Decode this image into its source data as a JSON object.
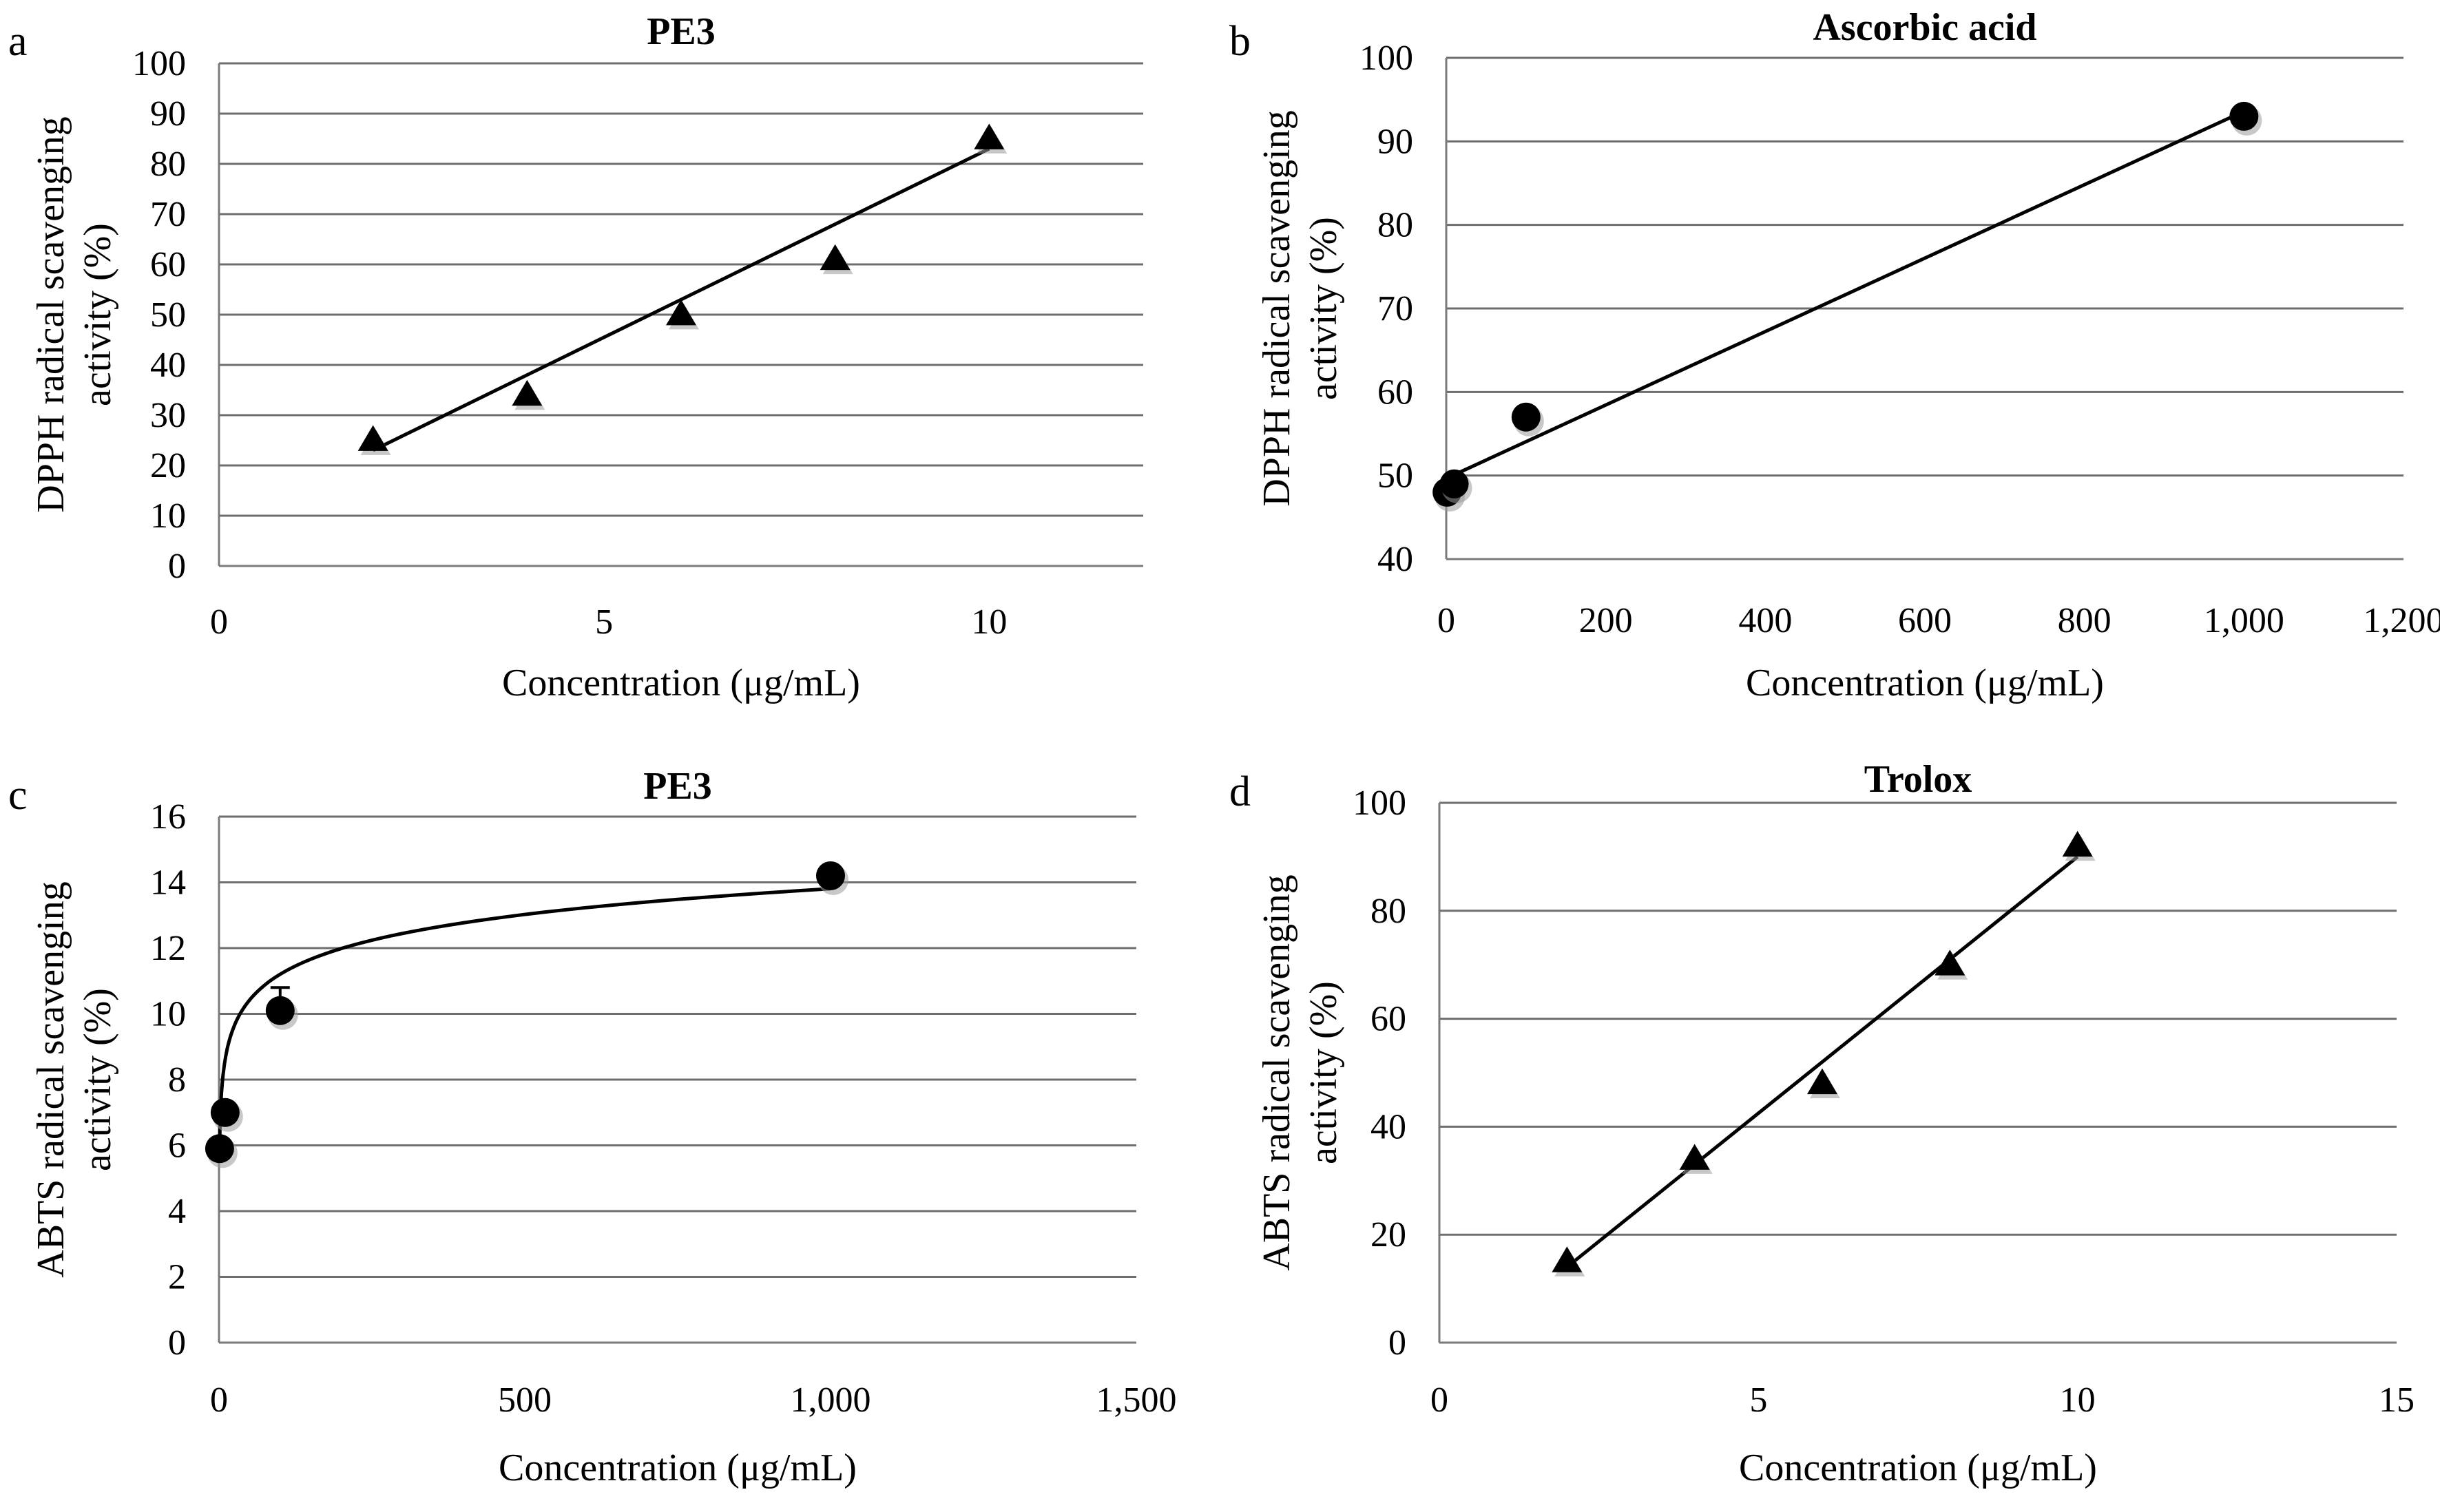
{
  "chart_data": [
    {
      "panel": "a",
      "type": "scatter",
      "title": "PE3",
      "xlabel": "Concentration (μg/mL)",
      "ylabel": [
        "DPPH radical scavenging",
        "activity (%)"
      ],
      "xlim": [
        0,
        12
      ],
      "ylim": [
        0,
        100
      ],
      "xticks": [
        0,
        5,
        10
      ],
      "xtick_labels": [
        "0",
        "5",
        "10"
      ],
      "yticks": [
        0,
        10,
        20,
        30,
        40,
        50,
        60,
        70,
        80,
        90,
        100
      ],
      "ytick_labels": [
        "0",
        "10",
        "20",
        "30",
        "40",
        "50",
        "60",
        "70",
        "80",
        "90",
        "100"
      ],
      "grid": true,
      "marker": "triangle",
      "x": [
        2,
        4,
        6,
        8,
        10
      ],
      "y": [
        25,
        34,
        50,
        61,
        85
      ],
      "fit": {
        "kind": "linear",
        "x": [
          2,
          10
        ],
        "y": [
          23,
          83
        ]
      }
    },
    {
      "panel": "b",
      "type": "scatter",
      "title": "Ascorbic acid",
      "xlabel": "Concentration (μg/mL)",
      "ylabel": [
        "DPPH radical scavenging",
        "activity (%)"
      ],
      "xlim": [
        0,
        1200
      ],
      "ylim": [
        40,
        100
      ],
      "xticks": [
        0,
        200,
        400,
        600,
        800,
        1000,
        1200
      ],
      "xtick_labels": [
        "0",
        "200",
        "400",
        "600",
        "800",
        "1,000",
        "1,200"
      ],
      "yticks": [
        40,
        50,
        60,
        70,
        80,
        90,
        100
      ],
      "ytick_labels": [
        "40",
        "50",
        "60",
        "70",
        "80",
        "90",
        "100"
      ],
      "grid": true,
      "marker": "circle",
      "x": [
        1,
        10,
        100,
        1000
      ],
      "y": [
        48,
        49,
        57,
        93
      ],
      "fit": {
        "kind": "linear",
        "x": [
          1,
          1000
        ],
        "y": [
          49.7,
          93.6
        ]
      }
    },
    {
      "panel": "c",
      "type": "scatter",
      "title": "PE3",
      "xlabel": "Concentration (μg/mL)",
      "ylabel": [
        "ABTS radical scavenging",
        "activity (%)"
      ],
      "xlim": [
        0,
        1500
      ],
      "ylim": [
        0,
        16
      ],
      "xticks": [
        0,
        500,
        1000,
        1500
      ],
      "xtick_labels": [
        "0",
        "500",
        "1,000",
        "1,500"
      ],
      "yticks": [
        0,
        2,
        4,
        6,
        8,
        10,
        12,
        14,
        16
      ],
      "ytick_labels": [
        "0",
        "2",
        "4",
        "6",
        "8",
        "10",
        "12",
        "14",
        "16"
      ],
      "grid": true,
      "marker": "circle",
      "x": [
        1,
        10,
        100,
        1000
      ],
      "y": [
        5.9,
        7,
        10.1,
        14.2
      ],
      "error": [
        0,
        0,
        0.7,
        0
      ],
      "fit": {
        "kind": "logarithmic",
        "a": 6.0,
        "b": 1.13,
        "x_range": [
          1,
          1000
        ]
      }
    },
    {
      "panel": "d",
      "type": "scatter",
      "title": "Trolox",
      "xlabel": "Concentration (μg/mL)",
      "ylabel": [
        "ABTS radical scavenging",
        "activity (%)"
      ],
      "xlim": [
        0,
        15
      ],
      "ylim": [
        0,
        100
      ],
      "xticks": [
        0,
        5,
        10,
        15
      ],
      "xtick_labels": [
        "0",
        "5",
        "10",
        "15"
      ],
      "yticks": [
        0,
        20,
        40,
        60,
        80,
        100
      ],
      "ytick_labels": [
        "0",
        "20",
        "40",
        "60",
        "80",
        "100"
      ],
      "grid": true,
      "marker": "triangle",
      "x": [
        2,
        4,
        6,
        8,
        10
      ],
      "y": [
        15,
        34,
        48,
        70,
        92
      ],
      "fit": {
        "kind": "linear",
        "x": [
          2,
          10
        ],
        "y": [
          14,
          90
        ]
      }
    }
  ]
}
